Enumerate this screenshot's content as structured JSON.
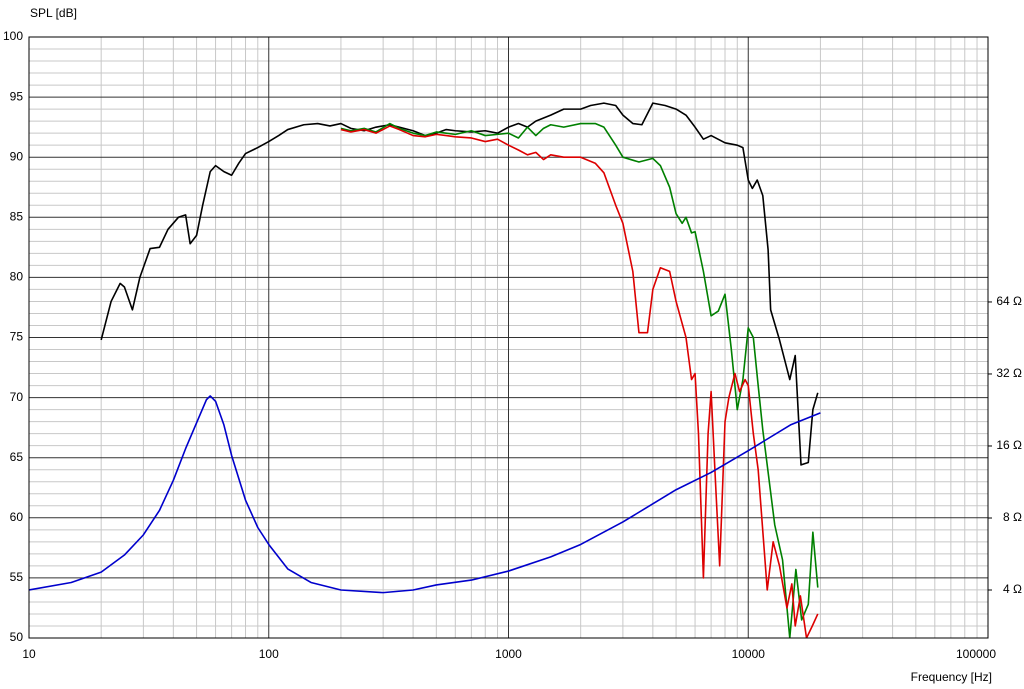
{
  "chart_data": {
    "type": "line",
    "y_label": "SPL [dB]",
    "x_label": "Frequency [Hz]",
    "xscale": "log",
    "y2scale": "log",
    "grid": true,
    "xlim": [
      10,
      100000
    ],
    "xticks": [
      10,
      100,
      1000,
      10000,
      100000
    ],
    "xminorticks": [
      20,
      30,
      40,
      50,
      60,
      70,
      80,
      90,
      200,
      300,
      400,
      500,
      600,
      700,
      800,
      900,
      2000,
      3000,
      4000,
      5000,
      6000,
      7000,
      8000,
      9000,
      20000,
      30000,
      40000,
      50000,
      60000,
      70000,
      80000,
      90000
    ],
    "ylim": [
      50,
      100
    ],
    "yticks": [
      50,
      55,
      60,
      65,
      70,
      75,
      80,
      85,
      90,
      95,
      100
    ],
    "yminorticks": [
      51,
      52,
      53,
      54,
      56,
      57,
      58,
      59,
      61,
      62,
      63,
      64,
      66,
      67,
      68,
      69,
      71,
      72,
      73,
      74,
      76,
      77,
      78,
      79,
      81,
      82,
      83,
      84,
      86,
      87,
      88,
      89,
      91,
      92,
      93,
      94,
      96,
      97,
      98,
      99
    ],
    "y2lim": [
      2.52,
      820
    ],
    "y2ticks": [
      {
        "value": 4,
        "label": "4 Ω"
      },
      {
        "value": 8,
        "label": "8 Ω"
      },
      {
        "value": 16,
        "label": "16 Ω"
      },
      {
        "value": 32,
        "label": "32 Ω"
      },
      {
        "value": 64,
        "label": "64 Ω"
      }
    ],
    "series": [
      {
        "color": "#000000",
        "x": [
          20,
          22,
          24,
          25,
          27,
          29,
          32,
          35,
          38,
          42,
          45,
          47,
          50,
          53,
          57,
          60,
          65,
          70,
          75,
          80,
          90,
          100,
          110,
          120,
          140,
          160,
          180,
          200,
          220,
          250,
          280,
          320,
          350,
          400,
          450,
          500,
          550,
          600,
          700,
          800,
          900,
          1000,
          1100,
          1200,
          1300,
          1500,
          1700,
          2000,
          2200,
          2500,
          2800,
          3000,
          3300,
          3600,
          4000,
          4500,
          5000,
          5500,
          6000,
          6500,
          7000,
          8000,
          9000,
          9500,
          10000,
          10400,
          10900,
          11500,
          12100,
          12400,
          13500,
          14900,
          15700,
          16600,
          17800,
          18600,
          19500
        ],
        "values": [
          74.8,
          78,
          79.5,
          79.2,
          77.3,
          80,
          82.4,
          82.5,
          84,
          85,
          85.2,
          82.8,
          83.5,
          86,
          88.8,
          89.3,
          88.8,
          88.5,
          89.5,
          90.3,
          90.8,
          91.3,
          91.8,
          92.3,
          92.7,
          92.8,
          92.6,
          92.8,
          92.4,
          92.2,
          92.5,
          92.7,
          92.5,
          92.2,
          91.8,
          92,
          92.3,
          92.2,
          92.1,
          92.2,
          92,
          92.5,
          92.8,
          92.5,
          93,
          93.5,
          94,
          94,
          94.3,
          94.5,
          94.3,
          93.5,
          92.8,
          92.7,
          94.5,
          94.3,
          94,
          93.5,
          92.5,
          91.5,
          91.8,
          91.2,
          91,
          90.8,
          88.1,
          87.4,
          88.1,
          86.8,
          82.3,
          77.3,
          74.8,
          71.5,
          73.5,
          64.4,
          64.6,
          69,
          70.4
        ]
      },
      {
        "color": "#008000",
        "x": [
          200,
          220,
          250,
          280,
          320,
          350,
          400,
          450,
          500,
          550,
          600,
          700,
          800,
          900,
          1000,
          1100,
          1200,
          1300,
          1400,
          1500,
          1700,
          2000,
          2300,
          2500,
          2800,
          3000,
          3500,
          4000,
          4300,
          4700,
          5000,
          5300,
          5500,
          5800,
          6000,
          6500,
          7000,
          7500,
          8000,
          8500,
          9000,
          9500,
          10000,
          10500,
          11000,
          11500,
          12900,
          13900,
          14900,
          15800,
          16700,
          17800,
          18600,
          19500
        ],
        "values": [
          92.4,
          92.2,
          92.4,
          92.1,
          92.8,
          92.4,
          92,
          91.8,
          92.1,
          92,
          91.9,
          92.2,
          91.8,
          91.9,
          92,
          91.6,
          92.5,
          91.8,
          92.4,
          92.7,
          92.5,
          92.8,
          92.8,
          92.5,
          91,
          90,
          89.6,
          89.9,
          89.3,
          87.5,
          85.3,
          84.5,
          85,
          83.7,
          83.8,
          80.5,
          76.8,
          77.2,
          78.6,
          74,
          69,
          71.5,
          75.8,
          75,
          71,
          67.3,
          59.4,
          56.5,
          50,
          55.7,
          51.5,
          52.8,
          58.8,
          54.2
        ]
      },
      {
        "color": "#dd0000",
        "x": [
          200,
          220,
          250,
          280,
          320,
          350,
          400,
          450,
          500,
          550,
          600,
          700,
          800,
          900,
          1000,
          1100,
          1200,
          1300,
          1400,
          1500,
          1700,
          2000,
          2300,
          2500,
          2800,
          3000,
          3300,
          3500,
          3800,
          4000,
          4300,
          4700,
          5000,
          5500,
          5800,
          6000,
          6200,
          6500,
          6800,
          7000,
          7300,
          7600,
          8000,
          8300,
          8800,
          9200,
          9700,
          10000,
          10500,
          11000,
          12000,
          12700,
          13500,
          14500,
          15200,
          15700,
          16500,
          17500,
          18500,
          19500
        ],
        "values": [
          92.3,
          92.1,
          92.3,
          92,
          92.6,
          92.3,
          91.8,
          91.7,
          91.9,
          91.8,
          91.7,
          91.6,
          91.3,
          91.5,
          91,
          90.6,
          90.2,
          90.4,
          89.8,
          90.2,
          90,
          90,
          89.5,
          88.7,
          86,
          84.5,
          80.5,
          75.4,
          75.4,
          79,
          80.8,
          80.5,
          78,
          75,
          71.5,
          72,
          67,
          55,
          67,
          70.5,
          63,
          56,
          68,
          70,
          72,
          70.5,
          71.5,
          71,
          67,
          64,
          54,
          58,
          56,
          52.5,
          54.5,
          51,
          53.5,
          50,
          51,
          52
        ]
      },
      {
        "color": "#0000cc",
        "axis": "y2",
        "x": [
          10,
          15,
          20,
          25,
          30,
          35,
          40,
          45,
          50,
          55,
          57,
          60,
          65,
          70,
          80,
          90,
          100,
          120,
          150,
          200,
          300,
          400,
          500,
          700,
          1000,
          1500,
          2000,
          3000,
          5000,
          7000,
          10000,
          15000,
          20000
        ],
        "values": [
          4,
          4.3,
          4.75,
          5.6,
          6.8,
          8.6,
          11.5,
          15.6,
          20,
          25,
          25.9,
          24.6,
          19.6,
          14.6,
          9.5,
          7.3,
          6.2,
          4.9,
          4.3,
          4,
          3.9,
          4,
          4.2,
          4.4,
          4.8,
          5.5,
          6.2,
          7.7,
          10.5,
          12.4,
          15.3,
          19.6,
          22
        ]
      }
    ]
  }
}
